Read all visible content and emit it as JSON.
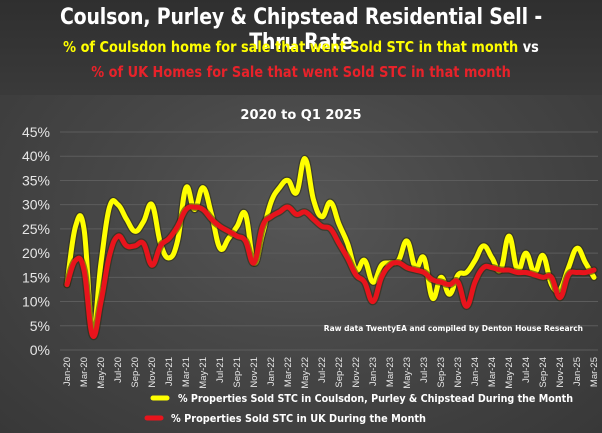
{
  "header": {
    "title": "Coulson, Purley & Chipstead Residential Sell - Thru Rate",
    "subtitle_line1": "% of Coulsdon home for sale that went Sold STC in that month",
    "subtitle_line1_suffix": " vs",
    "subtitle_line2": "% of UK Homes for Sale that went Sold STC in that month"
  },
  "colors": {
    "local_series": "#ffff00",
    "uk_series": "#e8141c",
    "subtitle_local": "#ffff00",
    "subtitle_uk": "#e8222a"
  },
  "chart_data": {
    "type": "line",
    "title": "2020 to Q1 2025",
    "xlabel": "",
    "ylabel": "",
    "ylim": [
      0,
      45
    ],
    "y_ticks": [
      "0%",
      "5%",
      "10%",
      "15%",
      "20%",
      "25%",
      "30%",
      "35%",
      "40%",
      "45%"
    ],
    "y_tick_values": [
      0,
      5,
      10,
      15,
      20,
      25,
      30,
      35,
      40,
      45
    ],
    "grid": true,
    "legend_position": "bottom",
    "annotation": "Raw data TwentyEA and compiled by Denton House Research",
    "x": [
      "Jan-20",
      "Feb-20",
      "Mar-20",
      "Apr-20",
      "May-20",
      "Jun-20",
      "Jul-20",
      "Aug-20",
      "Sep-20",
      "Oct-20",
      "Nov-20",
      "Dec-20",
      "Jan-21",
      "Feb-21",
      "Mar-21",
      "Apr-21",
      "May-21",
      "Jun-21",
      "Jul-21",
      "Aug-21",
      "Sep-21",
      "Oct-21",
      "Nov-21",
      "Dec-21",
      "Jan-22",
      "Feb-22",
      "Mar-22",
      "Apr-22",
      "May-22",
      "Jun-22",
      "Jul-22",
      "Aug-22",
      "Sep-22",
      "Oct-22",
      "Nov-22",
      "Dec-22",
      "Jan-23",
      "Feb-23",
      "Mar-23",
      "Apr-23",
      "May-23",
      "Jun-23",
      "Jul-23",
      "Aug-23",
      "Sep-23",
      "Oct-23",
      "Nov-23",
      "Dec-23",
      "Jan-24",
      "Feb-24",
      "Mar-24",
      "Apr-24",
      "May-24",
      "Jun-24",
      "Jul-24",
      "Aug-24",
      "Sep-24",
      "Oct-24",
      "Nov-24",
      "Dec-24",
      "Jan-25",
      "Feb-25",
      "Mar-25"
    ],
    "x_tick_labels": [
      "Jan-20",
      "Mar-20",
      "May-20",
      "Jul-20",
      "Sep-20",
      "Nov-20",
      "Jan-21",
      "Mar-21",
      "May-21",
      "Jul-21",
      "Sep-21",
      "Nov-21",
      "Jan-22",
      "Mar-22",
      "May-22",
      "Jul-22",
      "Sep-22",
      "Nov-22",
      "Jan-23",
      "Mar-23",
      "May-23",
      "Jul-23",
      "Sep-23",
      "Nov-23",
      "Jan-24",
      "Mar-24",
      "May-24",
      "Jul-24",
      "Sep-24",
      "Nov-24",
      "Jan-25",
      "Mar-25"
    ],
    "series": [
      {
        "name": "% Properties Sold STC in Coulsdon, Purley & Chipstead During the Month",
        "color": "#ffff00",
        "values": [
          13.5,
          25.5,
          25,
          4,
          18,
          29.5,
          30,
          27,
          24.5,
          26.5,
          30,
          22,
          19,
          22.5,
          33.5,
          29,
          33.5,
          28,
          21,
          23,
          25.5,
          28,
          18,
          24,
          30.5,
          33.5,
          35,
          32.5,
          39.5,
          31,
          27.5,
          30.5,
          26,
          22,
          16.5,
          18.5,
          14,
          17.5,
          18,
          18.5,
          22.5,
          17,
          19,
          10.7,
          15,
          11.5,
          15.5,
          16,
          18.5,
          21.5,
          19,
          16.5,
          23.5,
          16.5,
          20,
          16,
          19.5,
          13.5,
          12.5,
          17,
          21,
          18,
          15
        ]
      },
      {
        "name": "% Properties Sold STC in UK During the Month",
        "color": "#e8141c",
        "values": [
          13.5,
          18.5,
          16.5,
          3,
          10,
          19.5,
          23.5,
          21.5,
          21.5,
          22,
          17.5,
          21.5,
          23,
          25.5,
          29,
          29.5,
          29,
          27,
          25.5,
          24.5,
          23.5,
          22.5,
          18,
          25.5,
          27.5,
          28.5,
          29.5,
          28,
          28.5,
          27,
          25.5,
          25,
          22,
          19,
          15.5,
          14,
          10,
          15,
          17.5,
          18,
          17,
          16.5,
          16,
          14.5,
          14,
          13.5,
          14,
          9,
          14,
          17,
          17,
          16.5,
          16.5,
          16,
          16,
          15.5,
          15,
          15,
          10.8,
          15.5,
          16,
          16,
          16.5
        ]
      }
    ]
  }
}
